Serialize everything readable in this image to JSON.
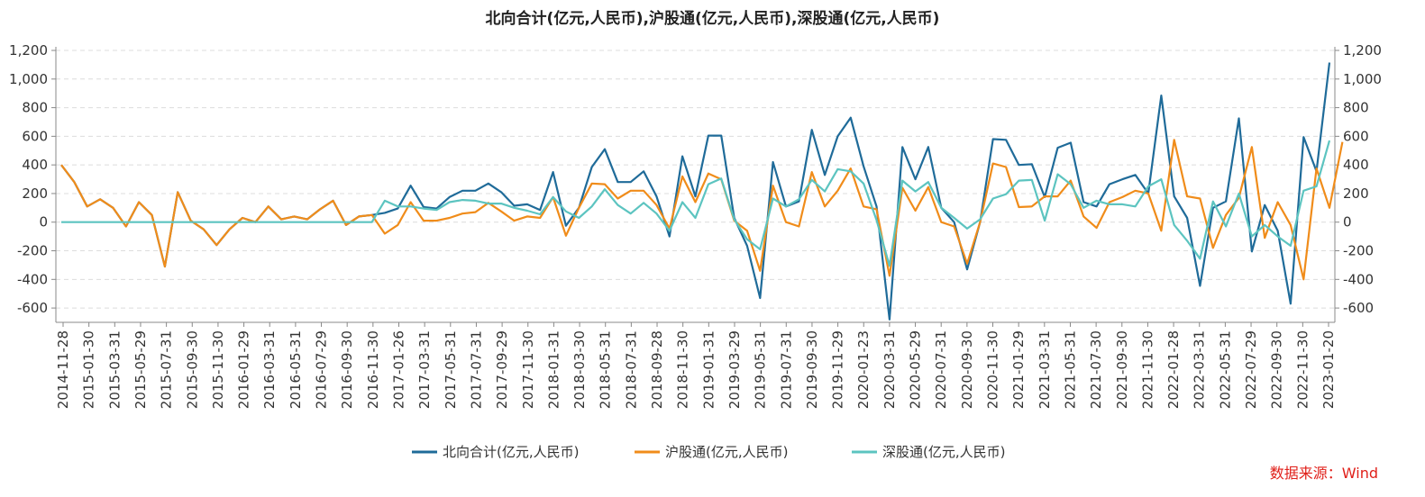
{
  "chart_data": {
    "type": "line",
    "title": "北向合计(亿元,人民币),沪股通(亿元,人民币),深股通(亿元,人民币)",
    "source": "数据来源：Wind",
    "ylim": [
      -700,
      1200
    ],
    "yticks": [
      -600,
      -400,
      -200,
      0,
      200,
      400,
      600,
      800,
      1000,
      1200
    ],
    "ytick_labels": [
      "-600",
      "-400",
      "-200",
      "0",
      "200",
      "400",
      "600",
      "800",
      "1,000",
      "1,200"
    ],
    "x_ticks": [
      "2014-11-28",
      "2015-01-30",
      "2015-03-31",
      "2015-05-29",
      "2015-07-31",
      "2015-09-30",
      "2015-11-30",
      "2016-01-29",
      "2016-03-31",
      "2016-05-31",
      "2016-07-29",
      "2016-09-30",
      "2016-11-30",
      "2017-01-26",
      "2017-03-31",
      "2017-05-31",
      "2017-07-31",
      "2017-09-29",
      "2017-11-30",
      "2018-01-31",
      "2018-03-30",
      "2018-05-31",
      "2018-07-31",
      "2018-09-28",
      "2018-11-30",
      "2019-01-31",
      "2019-03-29",
      "2019-05-31",
      "2019-07-31",
      "2019-09-30",
      "2019-11-29",
      "2020-01-23",
      "2020-03-31",
      "2020-05-29",
      "2020-07-31",
      "2020-09-30",
      "2020-11-30",
      "2021-01-29",
      "2021-03-31",
      "2021-05-31",
      "2021-07-30",
      "2021-09-30",
      "2021-11-30",
      "2022-01-28",
      "2022-03-31",
      "2022-05-31",
      "2022-07-29",
      "2022-09-30",
      "2022-11-30",
      "2023-01-20"
    ],
    "grid": true,
    "legend_position": "bottom",
    "series": [
      {
        "name": "北向合计(亿元,人民币)",
        "color": "#1f6b99",
        "values": [
          400,
          280,
          110,
          160,
          100,
          -30,
          140,
          50,
          -310,
          210,
          10,
          -50,
          -160,
          -50,
          30,
          0,
          110,
          20,
          40,
          20,
          90,
          150,
          -20,
          40,
          50,
          65,
          95,
          255,
          105,
          95,
          175,
          220,
          220,
          270,
          210,
          115,
          125,
          85,
          350,
          -25,
          100,
          385,
          510,
          280,
          280,
          355,
          180,
          -100,
          460,
          180,
          605,
          605,
          30,
          -165,
          -530,
          420,
          110,
          145,
          645,
          330,
          600,
          730,
          390,
          110,
          -680,
          525,
          300,
          525,
          100,
          0,
          -330,
          0,
          580,
          575,
          400,
          405,
          175,
          520,
          555,
          140,
          110,
          265,
          300,
          330,
          200,
          885,
          180,
          30,
          -445,
          100,
          145,
          725,
          -205,
          120,
          -60,
          -570,
          595,
          355,
          1115
        ]
      },
      {
        "name": "沪股通(亿元,人民币)",
        "color": "#f08c1a",
        "values": [
          400,
          280,
          110,
          160,
          100,
          -30,
          140,
          50,
          -310,
          210,
          10,
          -50,
          -160,
          -50,
          30,
          0,
          110,
          20,
          40,
          20,
          90,
          150,
          -20,
          40,
          50,
          -80,
          -20,
          140,
          10,
          10,
          30,
          60,
          70,
          135,
          75,
          10,
          40,
          30,
          175,
          -95,
          100,
          270,
          265,
          165,
          220,
          220,
          120,
          -45,
          320,
          140,
          340,
          300,
          10,
          -60,
          -340,
          255,
          0,
          -30,
          350,
          110,
          220,
          375,
          110,
          90,
          -375,
          240,
          80,
          245,
          0,
          -30,
          -290,
          0,
          410,
          385,
          105,
          110,
          180,
          180,
          290,
          40,
          -40,
          140,
          175,
          220,
          200,
          -60,
          575,
          180,
          165,
          -180,
          50,
          170,
          525,
          -110,
          140,
          -20,
          -400,
          375,
          100,
          560
        ]
      },
      {
        "name": "深股通(亿元,人民币)",
        "color": "#5cc4c0",
        "values": [
          0,
          0,
          0,
          0,
          0,
          0,
          0,
          0,
          0,
          0,
          0,
          0,
          0,
          0,
          0,
          0,
          0,
          0,
          0,
          0,
          0,
          0,
          0,
          0,
          0,
          150,
          110,
          110,
          95,
          85,
          140,
          155,
          150,
          130,
          130,
          100,
          80,
          55,
          175,
          75,
          30,
          110,
          230,
          120,
          60,
          135,
          60,
          -60,
          140,
          30,
          265,
          305,
          20,
          -120,
          -190,
          165,
          110,
          160,
          295,
          215,
          370,
          355,
          270,
          15,
          -305,
          290,
          215,
          280,
          100,
          30,
          -45,
          20,
          165,
          195,
          290,
          295,
          10,
          335,
          265,
          100,
          150,
          125,
          125,
          110,
          250,
          300,
          -20,
          -130,
          -255,
          145,
          -30,
          200,
          -100,
          -20,
          -100,
          -165,
          220,
          250,
          570
        ]
      }
    ]
  }
}
